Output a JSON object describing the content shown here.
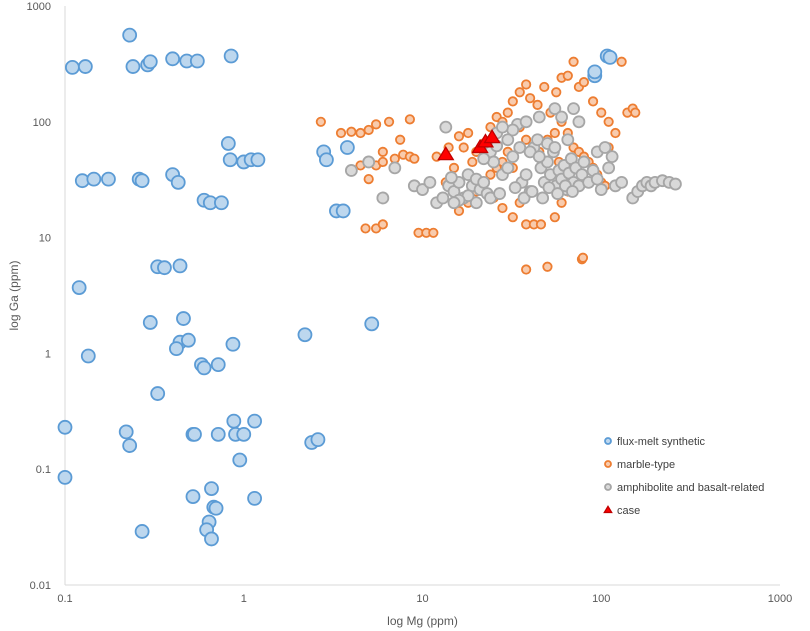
{
  "chart_data": {
    "type": "scatter",
    "title": "",
    "xlabel": "log Mg (ppm)",
    "ylabel": "log Ga (ppm)",
    "x_scale": "log",
    "y_scale": "log",
    "xlim": [
      0.1,
      1000
    ],
    "ylim": [
      0.01,
      1000
    ],
    "x_ticks": [
      "0.1",
      "1",
      "10",
      "100",
      "1000"
    ],
    "y_ticks": [
      "0.01",
      "0.1",
      "1",
      "10",
      "100",
      "1000"
    ],
    "grid": false,
    "legend_position": "bottom-right",
    "series": [
      {
        "name": "flux-melt synthetic",
        "marker": "circle",
        "fill": "#bdd7ee",
        "stroke": "#5b9bd5",
        "size": "large",
        "points": [
          [
            0.23,
            560
          ],
          [
            0.11,
            295
          ],
          [
            0.13,
            300
          ],
          [
            0.24,
            300
          ],
          [
            0.29,
            310
          ],
          [
            0.3,
            330
          ],
          [
            0.4,
            350
          ],
          [
            0.48,
            335
          ],
          [
            0.55,
            335
          ],
          [
            0.85,
            370
          ],
          [
            0.125,
            31
          ],
          [
            0.145,
            32
          ],
          [
            0.175,
            32
          ],
          [
            0.26,
            32
          ],
          [
            0.27,
            31
          ],
          [
            0.4,
            35
          ],
          [
            0.43,
            30
          ],
          [
            0.6,
            21
          ],
          [
            0.65,
            20
          ],
          [
            0.75,
            20
          ],
          [
            0.82,
            65
          ],
          [
            0.84,
            47
          ],
          [
            1.0,
            45
          ],
          [
            1.1,
            47
          ],
          [
            1.2,
            47
          ],
          [
            2.8,
            55
          ],
          [
            2.9,
            47
          ],
          [
            3.3,
            17
          ],
          [
            3.6,
            17
          ],
          [
            3.8,
            60
          ],
          [
            0.12,
            3.7
          ],
          [
            0.33,
            5.6
          ],
          [
            0.36,
            5.5
          ],
          [
            0.44,
            5.7
          ],
          [
            0.3,
            1.85
          ],
          [
            0.46,
            2.0
          ],
          [
            0.44,
            1.25
          ],
          [
            0.49,
            1.3
          ],
          [
            0.42,
            1.1
          ],
          [
            0.58,
            0.8
          ],
          [
            0.6,
            0.75
          ],
          [
            0.72,
            0.8
          ],
          [
            0.87,
            1.2
          ],
          [
            2.2,
            1.45
          ],
          [
            5.2,
            1.8
          ],
          [
            0.135,
            0.95
          ],
          [
            0.33,
            0.45
          ],
          [
            0.1,
            0.23
          ],
          [
            0.1,
            0.085
          ],
          [
            0.22,
            0.21
          ],
          [
            0.23,
            0.16
          ],
          [
            0.52,
            0.2
          ],
          [
            0.53,
            0.2
          ],
          [
            0.72,
            0.2
          ],
          [
            0.88,
            0.26
          ],
          [
            0.9,
            0.2
          ],
          [
            1.0,
            0.2
          ],
          [
            1.15,
            0.26
          ],
          [
            0.95,
            0.12
          ],
          [
            2.4,
            0.17
          ],
          [
            2.6,
            0.18
          ],
          [
            0.52,
            0.058
          ],
          [
            0.66,
            0.068
          ],
          [
            0.68,
            0.047
          ],
          [
            0.7,
            0.046
          ],
          [
            1.15,
            0.056
          ],
          [
            0.27,
            0.029
          ],
          [
            0.64,
            0.035
          ],
          [
            0.62,
            0.03
          ],
          [
            0.66,
            0.025
          ],
          [
            92,
            250
          ],
          [
            108,
            370
          ],
          [
            112,
            360
          ],
          [
            92,
            270
          ]
        ]
      },
      {
        "name": "marble-type",
        "marker": "circle",
        "fill": "#f8cbad",
        "stroke": "#ed7d31",
        "size": "small",
        "points": [
          [
            2.7,
            100
          ],
          [
            3.5,
            80
          ],
          [
            4.0,
            82
          ],
          [
            4.5,
            80
          ],
          [
            5.0,
            85
          ],
          [
            5.5,
            95
          ],
          [
            6.5,
            100
          ],
          [
            7.5,
            70
          ],
          [
            8.5,
            105
          ],
          [
            6.0,
            55
          ],
          [
            7.0,
            48
          ],
          [
            7.8,
            52
          ],
          [
            8.5,
            50
          ],
          [
            9.0,
            48
          ],
          [
            5.5,
            42
          ],
          [
            6.0,
            45
          ],
          [
            4.5,
            42
          ],
          [
            5.0,
            32
          ],
          [
            5.5,
            12
          ],
          [
            4.8,
            12
          ],
          [
            6.0,
            13
          ],
          [
            9.5,
            11
          ],
          [
            10.5,
            11
          ],
          [
            11.5,
            11
          ],
          [
            12.0,
            50
          ],
          [
            14.0,
            60
          ],
          [
            16.0,
            75
          ],
          [
            18.0,
            80
          ],
          [
            20.0,
            55
          ],
          [
            22.0,
            65
          ],
          [
            24.0,
            90
          ],
          [
            26.0,
            110
          ],
          [
            28.0,
            100
          ],
          [
            30.0,
            120
          ],
          [
            32.0,
            150
          ],
          [
            35.0,
            180
          ],
          [
            38.0,
            210
          ],
          [
            40.0,
            160
          ],
          [
            44.0,
            140
          ],
          [
            48.0,
            200
          ],
          [
            52.0,
            120
          ],
          [
            56.0,
            180
          ],
          [
            60.0,
            240
          ],
          [
            65.0,
            250
          ],
          [
            70.0,
            330
          ],
          [
            75.0,
            200
          ],
          [
            80.0,
            220
          ],
          [
            90.0,
            150
          ],
          [
            100.0,
            120
          ],
          [
            110.0,
            100
          ],
          [
            120.0,
            80
          ],
          [
            130.0,
            330
          ],
          [
            140.0,
            120
          ],
          [
            150.0,
            130
          ],
          [
            155.0,
            120
          ],
          [
            60.0,
            100
          ],
          [
            65.0,
            80
          ],
          [
            70.0,
            60
          ],
          [
            75.0,
            55
          ],
          [
            80.0,
            50
          ],
          [
            85.0,
            45
          ],
          [
            90.0,
            40
          ],
          [
            95.0,
            35
          ],
          [
            100.0,
            30
          ],
          [
            105.0,
            28
          ],
          [
            110.0,
            60
          ],
          [
            35.0,
            90
          ],
          [
            38.0,
            70
          ],
          [
            42.0,
            60
          ],
          [
            45.0,
            55
          ],
          [
            50.0,
            70
          ],
          [
            55.0,
            80
          ],
          [
            58.0,
            45
          ],
          [
            28.0,
            45
          ],
          [
            26.0,
            40
          ],
          [
            24.0,
            35
          ],
          [
            22.0,
            30
          ],
          [
            20.0,
            25
          ],
          [
            18.0,
            20
          ],
          [
            16.0,
            17
          ],
          [
            25.0,
            22
          ],
          [
            28.0,
            18
          ],
          [
            32.0,
            15
          ],
          [
            35.0,
            20
          ],
          [
            38.0,
            13
          ],
          [
            42.0,
            13
          ],
          [
            46.0,
            13
          ],
          [
            55.0,
            15
          ],
          [
            60.0,
            20
          ],
          [
            65.0,
            25
          ],
          [
            38.0,
            5.3
          ],
          [
            50.0,
            5.6
          ],
          [
            78.0,
            6.5
          ],
          [
            79.0,
            6.7
          ],
          [
            13.5,
            30
          ],
          [
            15.0,
            40
          ],
          [
            17.0,
            60
          ],
          [
            19.0,
            45
          ],
          [
            30.0,
            55
          ],
          [
            32.0,
            40
          ]
        ]
      },
      {
        "name": "amphibolite and basalt-related",
        "marker": "circle",
        "fill": "#d9d9d9",
        "stroke": "#a6a6a6",
        "size": "medium",
        "points": [
          [
            4.0,
            38
          ],
          [
            5.0,
            45
          ],
          [
            6.0,
            22
          ],
          [
            7.0,
            40
          ],
          [
            9.0,
            28
          ],
          [
            10.0,
            26
          ],
          [
            11.0,
            30
          ],
          [
            12.0,
            20
          ],
          [
            13.0,
            22
          ],
          [
            13.5,
            90
          ],
          [
            14.0,
            28
          ],
          [
            15.0,
            25
          ],
          [
            16.0,
            30
          ],
          [
            17.0,
            22
          ],
          [
            18.0,
            35
          ],
          [
            19.0,
            28
          ],
          [
            20.0,
            32
          ],
          [
            21.0,
            26
          ],
          [
            22.0,
            30
          ],
          [
            23.0,
            24
          ],
          [
            24.0,
            55
          ],
          [
            25.0,
            45
          ],
          [
            26.0,
            80
          ],
          [
            28.0,
            35
          ],
          [
            30.0,
            40
          ],
          [
            32.0,
            50
          ],
          [
            34.0,
            95
          ],
          [
            36.0,
            30
          ],
          [
            38.0,
            35
          ],
          [
            40.0,
            25
          ],
          [
            42.0,
            60
          ],
          [
            44.0,
            70
          ],
          [
            46.0,
            40
          ],
          [
            48.0,
            30
          ],
          [
            50.0,
            45
          ],
          [
            52.0,
            35
          ],
          [
            54.0,
            55
          ],
          [
            56.0,
            28
          ],
          [
            58.0,
            38
          ],
          [
            60.0,
            32
          ],
          [
            62.0,
            42
          ],
          [
            64.0,
            26
          ],
          [
            66.0,
            36
          ],
          [
            68.0,
            48
          ],
          [
            70.0,
            30
          ],
          [
            72.0,
            40
          ],
          [
            75.0,
            28
          ],
          [
            78.0,
            35
          ],
          [
            80.0,
            45
          ],
          [
            85.0,
            30
          ],
          [
            90.0,
            38
          ],
          [
            95.0,
            32
          ],
          [
            100.0,
            26
          ],
          [
            110.0,
            40
          ],
          [
            120.0,
            28
          ],
          [
            130.0,
            30
          ],
          [
            150.0,
            22
          ],
          [
            160.0,
            25
          ],
          [
            170.0,
            28
          ],
          [
            180.0,
            30
          ],
          [
            190.0,
            28
          ],
          [
            200.0,
            30
          ],
          [
            220.0,
            31
          ],
          [
            240.0,
            30
          ],
          [
            260.0,
            29
          ],
          [
            55.0,
            130
          ],
          [
            60.0,
            110
          ],
          [
            70.0,
            130
          ],
          [
            75.0,
            100
          ],
          [
            45.0,
            110
          ],
          [
            38.0,
            100
          ],
          [
            32.0,
            85
          ],
          [
            28.0,
            90
          ],
          [
            30.0,
            70
          ],
          [
            26.0,
            62
          ],
          [
            22.0,
            48
          ],
          [
            20.0,
            20
          ],
          [
            18.0,
            23
          ],
          [
            16.0,
            21
          ],
          [
            15.0,
            20
          ],
          [
            24.0,
            22
          ],
          [
            27.0,
            24
          ],
          [
            33.0,
            27
          ],
          [
            37.0,
            22
          ],
          [
            41.0,
            25
          ],
          [
            47.0,
            22
          ],
          [
            51.0,
            27
          ],
          [
            57.0,
            24
          ],
          [
            63.0,
            28
          ],
          [
            69.0,
            25
          ],
          [
            35.0,
            60
          ],
          [
            40.0,
            55
          ],
          [
            45.0,
            50
          ],
          [
            50.0,
            65
          ],
          [
            55.0,
            60
          ],
          [
            65.0,
            70
          ],
          [
            95.0,
            55
          ],
          [
            105.0,
            60
          ],
          [
            115.0,
            50
          ],
          [
            14.5,
            33
          ]
        ]
      },
      {
        "name": "case",
        "marker": "triangle",
        "fill": "#ff0000",
        "stroke": "#c00000",
        "size": "large",
        "points": [
          [
            13.5,
            52
          ],
          [
            21.0,
            60
          ],
          [
            22.5,
            67
          ],
          [
            24.5,
            73
          ]
        ]
      }
    ]
  }
}
